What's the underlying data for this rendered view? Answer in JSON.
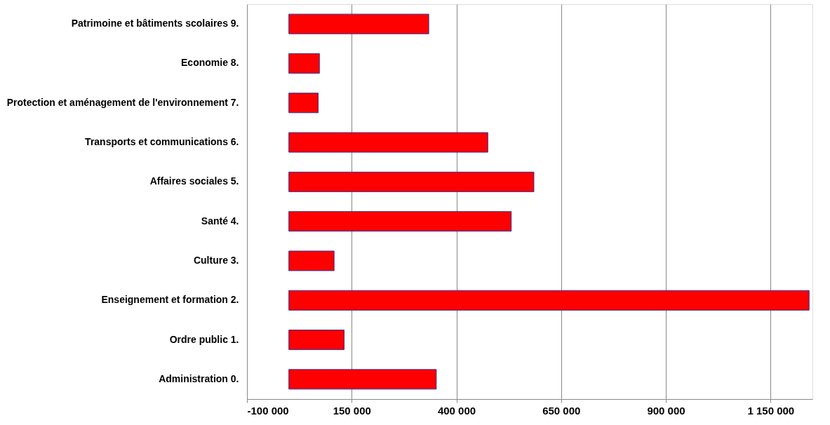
{
  "chart_data": {
    "type": "bar",
    "orientation": "horizontal",
    "categories": [
      "Patrimoine et bâtiments scolaires  9.",
      "Economie  8.",
      "Protection et aménagement de l'environnement  7.",
      "Transports et communications  6.",
      "Affaires sociales  5.",
      "Santé  4.",
      "Culture  3.",
      "Enseignement et formation  2.",
      "Ordre public  1.",
      "Administration  0."
    ],
    "values": [
      334000,
      73000,
      70000,
      475000,
      585000,
      531000,
      108000,
      1242000,
      132000,
      352000
    ],
    "color": "#ff0000",
    "xlim": [
      -100000,
      1250000
    ],
    "xticks": [
      {
        "value": -100000,
        "label": "-100 000"
      },
      {
        "value": 150000,
        "label": "150 000"
      },
      {
        "value": 400000,
        "label": "400 000"
      },
      {
        "value": 650000,
        "label": "650 000"
      },
      {
        "value": 900000,
        "label": "900 000"
      },
      {
        "value": 1150000,
        "label": "1 150 000"
      }
    ],
    "grid": "x"
  }
}
